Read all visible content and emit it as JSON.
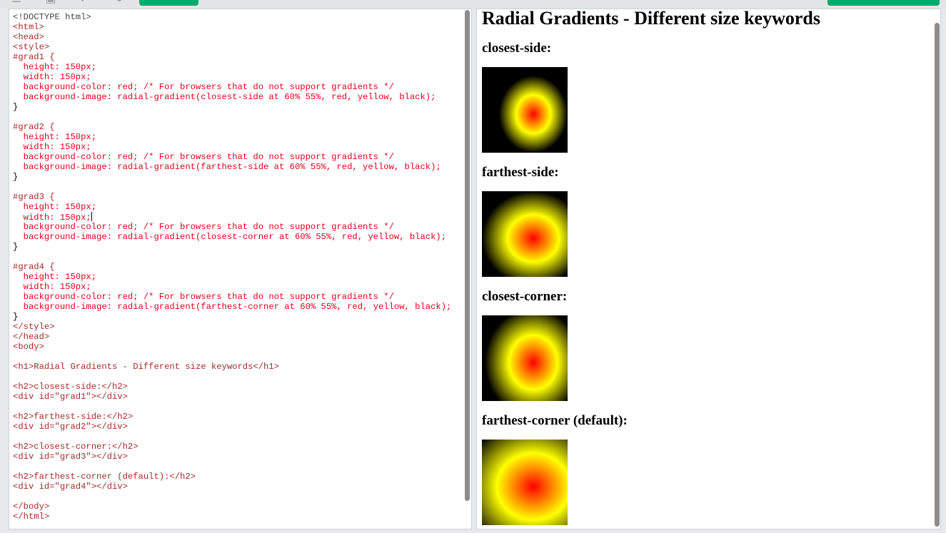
{
  "toolbar": {
    "icons": [
      "menu-icon",
      "home-icon",
      "theme-icon",
      "settings-icon"
    ],
    "green_buttons": 2
  },
  "editor": {
    "lines": [
      "<!DOCTYPE html>",
      "<html>",
      "<head>",
      "<style>",
      "#grad1 {",
      "  height: 150px;",
      "  width: 150px;",
      "  background-color: red; /* For browsers that do not support gradients */",
      "  background-image: radial-gradient(closest-side at 60% 55%, red, yellow, black);",
      "}",
      "",
      "#grad2 {",
      "  height: 150px;",
      "  width: 150px;",
      "  background-color: red; /* For browsers that do not support gradients */",
      "  background-image: radial-gradient(farthest-side at 60% 55%, red, yellow, black);",
      "}",
      "",
      "#grad3 {",
      "  height: 150px;",
      "  width: 150px;",
      "  background-color: red; /* For browsers that do not support gradients */",
      "  background-image: radial-gradient(closest-corner at 60% 55%, red, yellow, black);",
      "}",
      "",
      "#grad4 {",
      "  height: 150px;",
      "  width: 150px;",
      "  background-color: red; /* For browsers that do not support gradients */",
      "  background-image: radial-gradient(farthest-corner at 60% 55%, red, yellow, black);",
      "}",
      "</style>",
      "</head>",
      "<body>",
      "",
      "<h1>Radial Gradients - Different size keywords</h1>",
      "",
      "<h2>closest-side:</h2>",
      "<div id=\"grad1\"></div>",
      "",
      "<h2>farthest-side:</h2>",
      "<div id=\"grad2\"></div>",
      "",
      "<h2>closest-corner:</h2>",
      "<div id=\"grad3\"></div>",
      "",
      "<h2>farthest-corner (default):</h2>",
      "<div id=\"grad4\"></div>",
      "",
      "</body>",
      "</html>"
    ]
  },
  "preview": {
    "h1": "Radial Gradients - Different size keywords",
    "sections": [
      {
        "heading": "closest-side:"
      },
      {
        "heading": "farthest-side:"
      },
      {
        "heading": "closest-corner:"
      },
      {
        "heading": "farthest-corner (default):"
      }
    ]
  },
  "colors": {
    "accent_green": "#04aa6d",
    "tag": "#a52a2a",
    "property": "#e0001f",
    "value": "#0000cd",
    "comment": "#008000"
  }
}
